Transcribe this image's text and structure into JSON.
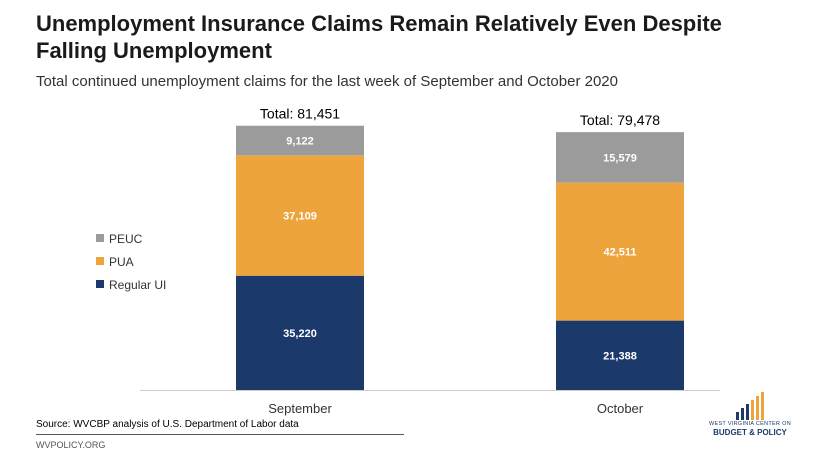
{
  "header": {
    "title": "Unemployment Insurance Claims Remain Relatively Even Despite Falling Unemployment",
    "subtitle": "Total continued unemployment claims for the last week of September and October 2020"
  },
  "footer": {
    "source": "Source: WVCBP analysis of U.S. Department of Labor data",
    "website": "WVPOLICY.ORG"
  },
  "logo": {
    "line1": "WEST VIRGINIA CENTER ON",
    "line2": "BUDGET & POLICY",
    "icon": "bar-chart-logo-icon"
  },
  "colors": {
    "regular_ui": "#1b3a6b",
    "pua": "#eea43c",
    "peuc": "#9b9b9b"
  },
  "chart_data": {
    "type": "bar",
    "stacked": true,
    "categories": [
      "September",
      "October"
    ],
    "series": [
      {
        "name": "Regular UI",
        "values": [
          35220,
          21388
        ],
        "color": "#1b3a6b"
      },
      {
        "name": "PUA",
        "values": [
          37109,
          42511
        ],
        "color": "#eea43c"
      },
      {
        "name": "PEUC",
        "values": [
          9122,
          15579
        ],
        "color": "#9b9b9b"
      }
    ],
    "data_labels": [
      [
        "35,220",
        "21,388"
      ],
      [
        "37,109",
        "42,511"
      ],
      [
        "9,122",
        "15,579"
      ]
    ],
    "totals": [
      "Total: 81,451",
      "Total: 79,478"
    ],
    "legend_order": [
      "PEUC",
      "PUA",
      "Regular UI"
    ],
    "legend_position": "left",
    "ylim": [
      0,
      90000
    ],
    "y_axis_visible": false,
    "grid": false
  }
}
